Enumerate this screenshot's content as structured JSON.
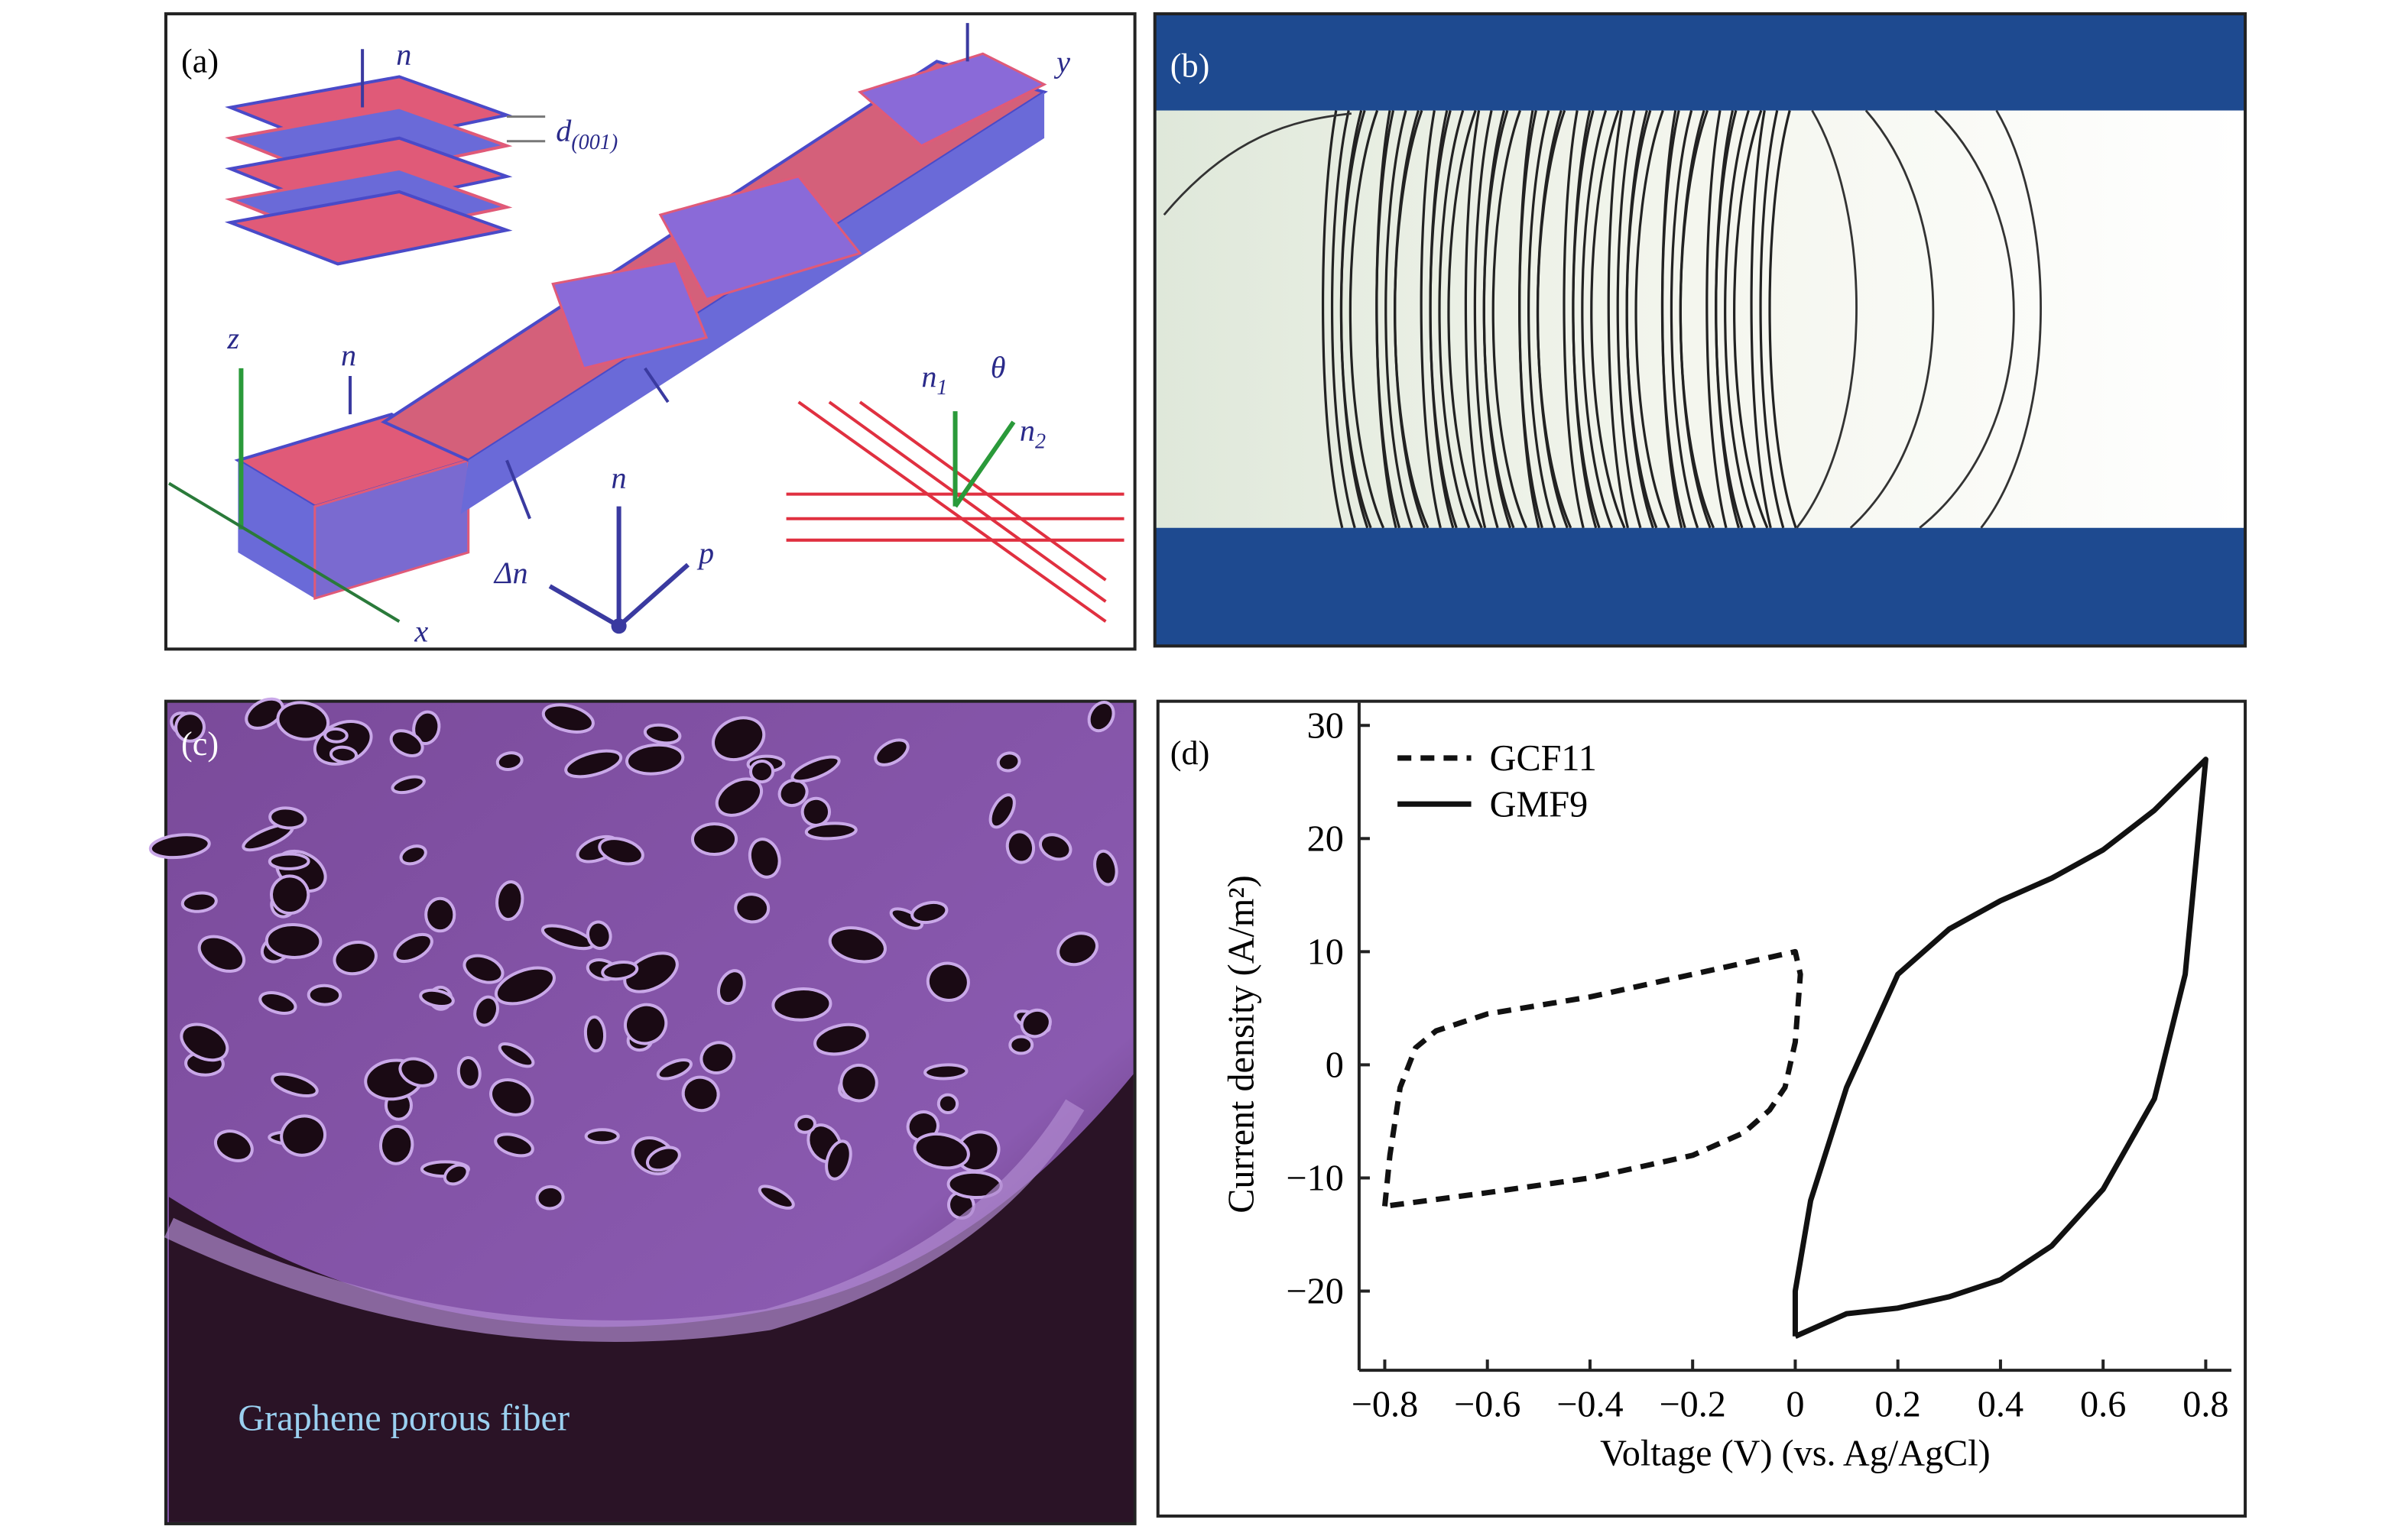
{
  "panels": {
    "a": {
      "label": "(a)",
      "annotations": [
        {
          "text": "n"
        },
        {
          "text": "d",
          "sub": "(001)"
        },
        {
          "text": "y"
        },
        {
          "text": "z"
        },
        {
          "text": "n"
        },
        {
          "text": "n"
        },
        {
          "text": "Δn"
        },
        {
          "text": "p"
        },
        {
          "text": "n",
          "sub": "1"
        },
        {
          "text": "θ"
        },
        {
          "text": "n",
          "sub": "2"
        },
        {
          "text": "x"
        }
      ]
    },
    "b": {
      "label": "(b)"
    },
    "c": {
      "label": "(c)",
      "caption": "Graphene porous fiber"
    }
  },
  "chart_data": {
    "type": "line",
    "label": "(d)",
    "xlabel": "Voltage (V) (vs. Ag/AgCl)",
    "ylabel": "Current density (A/m²)",
    "xlim": [
      -0.85,
      0.85
    ],
    "ylim": [
      -27,
      32
    ],
    "xticks": [
      {
        "value": -0.8,
        "label": "−0.8"
      },
      {
        "value": -0.6,
        "label": "−0.6"
      },
      {
        "value": -0.4,
        "label": "−0.4"
      },
      {
        "value": -0.2,
        "label": "−0.2"
      },
      0,
      0.2,
      0.4,
      0.6,
      0.8
    ],
    "yticks": [
      {
        "value": -20,
        "label": "−20"
      },
      {
        "value": -10,
        "label": "−10"
      },
      0,
      10,
      20,
      30
    ],
    "legend": "upper left",
    "series": [
      {
        "name": "GCF11",
        "color": "#111111",
        "line_style": "dashed",
        "x": [
          -0.8,
          -0.79,
          -0.77,
          -0.74,
          -0.7,
          -0.6,
          -0.4,
          -0.2,
          -0.05,
          0,
          0.01,
          0,
          -0.02,
          -0.05,
          -0.1,
          -0.2,
          -0.4,
          -0.6,
          -0.8
        ],
        "values": [
          -12.5,
          -8,
          -2,
          1.5,
          3,
          4.5,
          6,
          8,
          9.5,
          10,
          8,
          2,
          -2,
          -4,
          -6,
          -8,
          -10,
          -11.3,
          -12.5
        ]
      },
      {
        "name": "GMF9",
        "color": "#111111",
        "line_style": "solid",
        "x": [
          0,
          0.1,
          0.2,
          0.3,
          0.4,
          0.5,
          0.6,
          0.7,
          0.76,
          0.8,
          0.7,
          0.6,
          0.5,
          0.4,
          0.3,
          0.2,
          0.1,
          0.03,
          0,
          0
        ],
        "values": [
          -24,
          -22,
          -21.5,
          -20.5,
          -19,
          -16,
          -11,
          -3,
          8,
          27,
          22.5,
          19,
          16.5,
          14.5,
          12,
          8,
          -2,
          -12,
          -20,
          -24
        ]
      }
    ]
  }
}
